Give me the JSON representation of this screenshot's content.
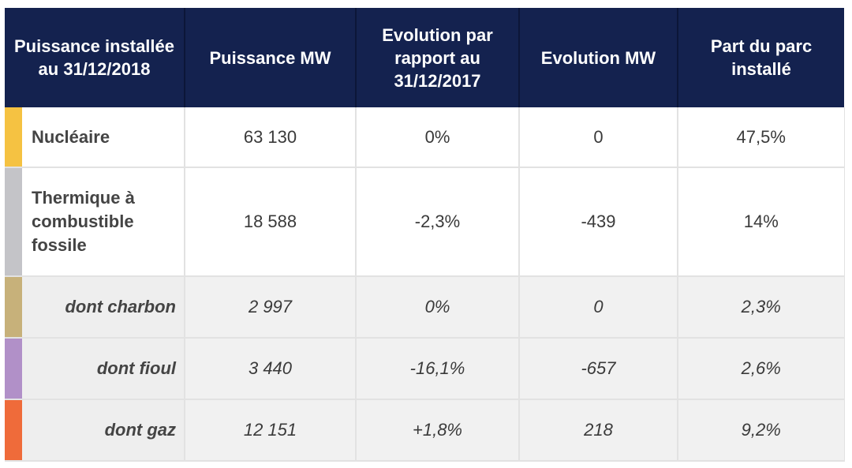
{
  "table": {
    "headers": [
      "Puissance installée au 31/12/2018",
      "Puissance MW",
      "Evolution par rapport au 31/12/2017",
      "Evolution MW",
      "Part du parc installé"
    ],
    "rows": [
      {
        "label": "Nucléaire",
        "color": "#f5c242",
        "power": "63 130",
        "evol_pct": "0%",
        "evol_mw": "0",
        "share": "47,5%"
      },
      {
        "label": "Thermique à combustible fossile",
        "color": "#c4c4c8",
        "power": "18 588",
        "evol_pct": "-2,3%",
        "evol_mw": "-439",
        "share": "14%"
      },
      {
        "label": "dont charbon",
        "color": "#c7b17a",
        "power": "2 997",
        "evol_pct": "0%",
        "evol_mw": "0",
        "share": "2,3%"
      },
      {
        "label": "dont fioul",
        "color": "#b190c8",
        "power": "3 440",
        "evol_pct": "-16,1%",
        "evol_mw": "-657",
        "share": "2,6%"
      },
      {
        "label": "dont gaz",
        "color": "#ef6b3a",
        "power": "12 151",
        "evol_pct": "+1,8%",
        "evol_mw": "218",
        "share": "9,2%"
      }
    ]
  }
}
